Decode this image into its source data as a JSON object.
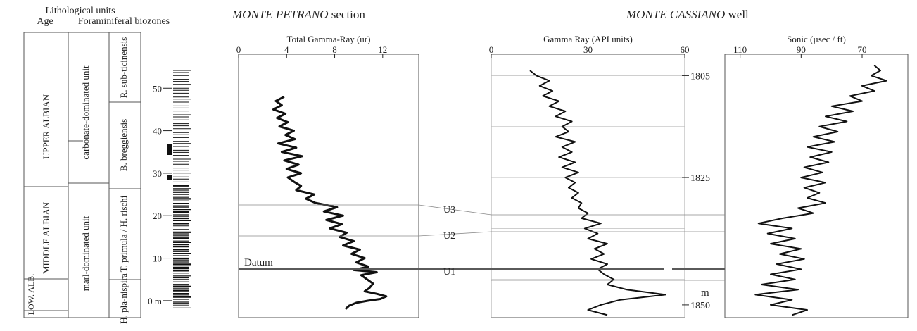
{
  "left_panel": {
    "heading_litho": "Lithological units",
    "heading_age": "Age",
    "heading_foram": "Foraminiferal biozones",
    "ages": [
      "UPPER ALBIAN",
      "MIDDLE ALBIAN",
      "LOW. ALB."
    ],
    "litho_units": [
      "carbonate-dominated unit",
      "marl-dominated unit"
    ],
    "biozones": [
      "R. sub-ticinensis",
      "B. breggiensis",
      "T. primula / H. rischi",
      "H. pla-nispira"
    ]
  },
  "section_titles": {
    "petrano_name": "MONTE PETRANO",
    "petrano_suffix": " section",
    "cassiano_name": "MONTE CASSIANO",
    "cassiano_suffix": " well"
  },
  "labels": {
    "datum": "Datum",
    "u3": "U3",
    "u2": "U2",
    "u1": "U1",
    "depth_unit": "m"
  },
  "chart_data": [
    {
      "type": "line",
      "title": "Total Gamma-Ray (ur)",
      "xlabel": "Total Gamma-Ray (ur)",
      "ylabel": "",
      "y_ticks": [
        0,
        10,
        20,
        30,
        40,
        50
      ],
      "y_tick_labels": [
        "0 m",
        "10",
        "20",
        "30",
        "40",
        "50"
      ],
      "xlim": [
        0,
        15
      ],
      "x_ticks": [
        0,
        4,
        8,
        12
      ],
      "ylim": [
        -4,
        58
      ],
      "series": [
        {
          "points": [
            [
              8.9,
              -2
            ],
            [
              9.2,
              -1.2
            ],
            [
              9.8,
              -0.5
            ],
            [
              10.8,
              0
            ],
            [
              11.8,
              0.4
            ],
            [
              12.3,
              1
            ],
            [
              11.5,
              1.6
            ],
            [
              10.5,
              2.2
            ],
            [
              10.9,
              3
            ],
            [
              11.2,
              4
            ],
            [
              10.7,
              5
            ],
            [
              10.2,
              6
            ],
            [
              11.5,
              6.7
            ],
            [
              9.6,
              7.2
            ],
            [
              10.8,
              8
            ],
            [
              9.8,
              9
            ],
            [
              10.5,
              10
            ],
            [
              9.4,
              11
            ],
            [
              10.1,
              12
            ],
            [
              8.7,
              13
            ],
            [
              9.6,
              14
            ],
            [
              8.4,
              15
            ],
            [
              9,
              16
            ],
            [
              7.6,
              17
            ],
            [
              8.6,
              18
            ],
            [
              7.3,
              19
            ],
            [
              8.7,
              20
            ],
            [
              7.1,
              21
            ],
            [
              8.2,
              22
            ],
            [
              6.4,
              23
            ],
            [
              5.6,
              24
            ],
            [
              6.3,
              25
            ],
            [
              4.8,
              26
            ],
            [
              5.2,
              27
            ],
            [
              4.6,
              28
            ],
            [
              4.1,
              29
            ],
            [
              5.2,
              30
            ],
            [
              4,
              31
            ],
            [
              5,
              32
            ],
            [
              3.8,
              33
            ],
            [
              5.3,
              34
            ],
            [
              3.6,
              35
            ],
            [
              4.8,
              36
            ],
            [
              3.3,
              37
            ],
            [
              4.7,
              38
            ],
            [
              3.9,
              39
            ],
            [
              4.6,
              40
            ],
            [
              3.4,
              41
            ],
            [
              4.1,
              42
            ],
            [
              3.2,
              43
            ],
            [
              3.9,
              44
            ],
            [
              2.9,
              45
            ],
            [
              3.6,
              46
            ],
            [
              3.1,
              47
            ],
            [
              3.8,
              48
            ]
          ]
        }
      ]
    },
    {
      "type": "line",
      "title": "Gamma Ray (API units)",
      "xlabel": "Gamma Ray (API units)",
      "ylabel": "",
      "y_ticks": [
        1805,
        1825,
        1850
      ],
      "y_tick_labels": [
        "1805",
        "1825",
        "1850"
      ],
      "xlim": [
        0,
        60
      ],
      "x_ticks": [
        0,
        30,
        60
      ],
      "ylim": [
        1800.8,
        1852.5
      ],
      "series": [
        {
          "points": [
            [
              12,
              1804
            ],
            [
              14,
              1805
            ],
            [
              18,
              1806
            ],
            [
              15,
              1807
            ],
            [
              19,
              1808
            ],
            [
              16,
              1809
            ],
            [
              21,
              1810
            ],
            [
              18,
              1811
            ],
            [
              23,
              1812
            ],
            [
              20,
              1813
            ],
            [
              25,
              1814
            ],
            [
              22,
              1815
            ],
            [
              24,
              1816
            ],
            [
              20,
              1817
            ],
            [
              26,
              1818
            ],
            [
              22,
              1819
            ],
            [
              25,
              1820
            ],
            [
              21,
              1821
            ],
            [
              26,
              1822
            ],
            [
              22,
              1823
            ],
            [
              27,
              1824
            ],
            [
              23,
              1825
            ],
            [
              26,
              1826
            ],
            [
              24,
              1827
            ],
            [
              27,
              1828
            ],
            [
              25,
              1829
            ],
            [
              28,
              1830
            ],
            [
              27,
              1831
            ],
            [
              30,
              1832
            ],
            [
              28,
              1833
            ],
            [
              34,
              1834
            ],
            [
              29,
              1835
            ],
            [
              33,
              1836
            ],
            [
              30,
              1837
            ],
            [
              36,
              1838
            ],
            [
              32,
              1839
            ],
            [
              35,
              1840
            ],
            [
              31,
              1841
            ],
            [
              36,
              1842
            ],
            [
              33,
              1843
            ],
            [
              35,
              1844
            ],
            [
              38,
              1845
            ],
            [
              36,
              1846
            ],
            [
              42,
              1847
            ],
            [
              54,
              1848
            ],
            [
              40,
              1849
            ],
            [
              34,
              1850
            ],
            [
              30,
              1851
            ],
            [
              36,
              1852
            ]
          ]
        }
      ]
    },
    {
      "type": "line",
      "title": "Sonic (µsec / ft)",
      "xlabel": "Sonic (µsec / ft)",
      "ylabel": "",
      "xlim": [
        115,
        55
      ],
      "x_ticks": [
        110,
        90,
        70
      ],
      "ylim": [
        1800.8,
        1852.5
      ],
      "series": [
        {
          "points": [
            [
              66,
              1803
            ],
            [
              64,
              1804
            ],
            [
              67,
              1805
            ],
            [
              62,
              1806
            ],
            [
              70,
              1807
            ],
            [
              66,
              1808
            ],
            [
              74,
              1809
            ],
            [
              70,
              1810
            ],
            [
              80,
              1811
            ],
            [
              73,
              1812
            ],
            [
              82,
              1813
            ],
            [
              75,
              1814
            ],
            [
              84,
              1815
            ],
            [
              78,
              1816
            ],
            [
              86,
              1817
            ],
            [
              79,
              1818
            ],
            [
              88,
              1819
            ],
            [
              80,
              1820
            ],
            [
              87,
              1821
            ],
            [
              81,
              1822
            ],
            [
              89,
              1823
            ],
            [
              83,
              1824
            ],
            [
              90,
              1825
            ],
            [
              82,
              1826
            ],
            [
              89,
              1827
            ],
            [
              84,
              1828
            ],
            [
              88,
              1829
            ],
            [
              82,
              1830
            ],
            [
              91,
              1831
            ],
            [
              86,
              1832
            ],
            [
              96,
              1833
            ],
            [
              104,
              1834
            ],
            [
              93,
              1835
            ],
            [
              101,
              1836
            ],
            [
              92,
              1837
            ],
            [
              100,
              1838
            ],
            [
              90,
              1839
            ],
            [
              97,
              1840
            ],
            [
              89,
              1841
            ],
            [
              98,
              1842
            ],
            [
              90,
              1843
            ],
            [
              100,
              1844
            ],
            [
              92,
              1845
            ],
            [
              103,
              1846
            ],
            [
              91,
              1847
            ],
            [
              105,
              1848
            ],
            [
              93,
              1849
            ],
            [
              100,
              1850
            ],
            [
              88,
              1851
            ],
            [
              93,
              1852
            ]
          ]
        }
      ]
    }
  ]
}
